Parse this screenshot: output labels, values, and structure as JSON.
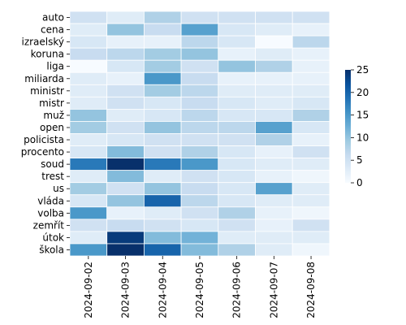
{
  "chart_data": {
    "type": "heatmap",
    "title": "",
    "xlabel": "",
    "ylabel": "",
    "rows": [
      "auto",
      "cena",
      "izraelský",
      "koruna",
      "liga",
      "miliarda",
      "ministr",
      "mistr",
      "muž",
      "open",
      "policista",
      "procento",
      "soud",
      "trest",
      "us",
      "vláda",
      "volba",
      "zemřít",
      "útok",
      "škola"
    ],
    "columns": [
      "2024-09-02",
      "2024-09-03",
      "2024-09-04",
      "2024-09-05",
      "2024-09-06",
      "2024-09-07",
      "2024-09-08"
    ],
    "values": [
      [
        5,
        3,
        8,
        5,
        5,
        5,
        5
      ],
      [
        3,
        10,
        6,
        14,
        4,
        3,
        2
      ],
      [
        4,
        2,
        2,
        7,
        4,
        0,
        7
      ],
      [
        6,
        7,
        9,
        10,
        2,
        3,
        2
      ],
      [
        0,
        4,
        9,
        5,
        10,
        8,
        2
      ],
      [
        3,
        2,
        15,
        6,
        2,
        2,
        2
      ],
      [
        3,
        5,
        9,
        7,
        3,
        3,
        3
      ],
      [
        3,
        5,
        4,
        6,
        4,
        3,
        4
      ],
      [
        10,
        3,
        4,
        7,
        4,
        4,
        8
      ],
      [
        9,
        5,
        10,
        7,
        7,
        14,
        4
      ],
      [
        3,
        4,
        5,
        5,
        5,
        8,
        2
      ],
      [
        4,
        11,
        5,
        8,
        4,
        2,
        5
      ],
      [
        18,
        25,
        18,
        15,
        4,
        3,
        3
      ],
      [
        3,
        11,
        3,
        5,
        4,
        2,
        1
      ],
      [
        9,
        5,
        10,
        6,
        4,
        14,
        3
      ],
      [
        4,
        10,
        20,
        7,
        4,
        3,
        3
      ],
      [
        15,
        2,
        3,
        5,
        8,
        2,
        1
      ],
      [
        5,
        6,
        5,
        4,
        5,
        2,
        5
      ],
      [
        3,
        24,
        11,
        12,
        3,
        3,
        3
      ],
      [
        15,
        25,
        20,
        11,
        8,
        3,
        1
      ]
    ],
    "colorscale": {
      "min": 0,
      "max": 25,
      "ticks": [
        0,
        5,
        10,
        15,
        20,
        25
      ],
      "low_color": "#f7fbff",
      "high_color": "#08306b"
    },
    "grid": false,
    "legend": "colorbar-right"
  }
}
